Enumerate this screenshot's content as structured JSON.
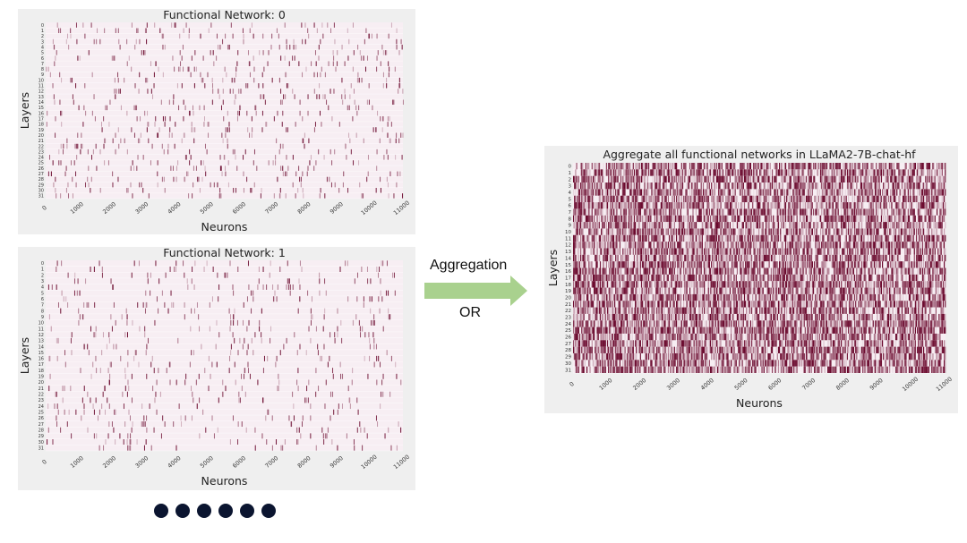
{
  "arrow": {
    "label_top": "Aggregation",
    "label_bottom": "OR",
    "color": "#a9d18e"
  },
  "dots": {
    "count": 6,
    "color": "#0b1530"
  },
  "colors": {
    "panel_bg": "#efefef",
    "cell_base": "#f7eef3",
    "cell_dark": "#6b0a2e"
  },
  "chart_data": [
    {
      "type": "heatmap",
      "title": "Functional Network: 0",
      "xlabel": "Neurons",
      "ylabel": "Layers",
      "x_ticks": [
        "0",
        "1000",
        "2000",
        "3000",
        "4000",
        "5000",
        "6000",
        "7000",
        "8000",
        "9000",
        "10000",
        "11000"
      ],
      "y_ticks": [
        "0",
        "1",
        "2",
        "3",
        "4",
        "5",
        "6",
        "7",
        "8",
        "9",
        "10",
        "11",
        "12",
        "13",
        "14",
        "15",
        "16",
        "17",
        "18",
        "19",
        "20",
        "21",
        "22",
        "23",
        "24",
        "25",
        "26",
        "27",
        "28",
        "29",
        "30",
        "31"
      ],
      "xlim": [
        0,
        11008
      ],
      "layers": 32,
      "sparse": true,
      "activation_density": 0.0022
    },
    {
      "type": "heatmap",
      "title": "Functional Network: 1",
      "xlabel": "Neurons",
      "ylabel": "Layers",
      "x_ticks": [
        "0",
        "1000",
        "2000",
        "3000",
        "4000",
        "5000",
        "6000",
        "7000",
        "8000",
        "9000",
        "10000",
        "11000"
      ],
      "y_ticks": [
        "0",
        "1",
        "2",
        "3",
        "4",
        "5",
        "6",
        "7",
        "8",
        "9",
        "10",
        "11",
        "12",
        "13",
        "14",
        "15",
        "16",
        "17",
        "18",
        "19",
        "20",
        "21",
        "22",
        "23",
        "24",
        "25",
        "26",
        "27",
        "28",
        "29",
        "30",
        "31"
      ],
      "xlim": [
        0,
        11008
      ],
      "layers": 32,
      "sparse": true,
      "activation_density": 0.0018
    },
    {
      "type": "heatmap",
      "title": "Aggregate all functional networks in LLaMA2-7B-chat-hf",
      "xlabel": "Neurons",
      "ylabel": "Layers",
      "x_ticks": [
        "0",
        "1000",
        "2000",
        "3000",
        "4000",
        "5000",
        "6000",
        "7000",
        "8000",
        "9000",
        "10000",
        "11000"
      ],
      "y_ticks": [
        "0",
        "1",
        "2",
        "3",
        "4",
        "5",
        "6",
        "7",
        "8",
        "9",
        "10",
        "11",
        "12",
        "13",
        "14",
        "15",
        "16",
        "17",
        "18",
        "19",
        "20",
        "21",
        "22",
        "23",
        "24",
        "25",
        "26",
        "27",
        "28",
        "29",
        "30",
        "31"
      ],
      "xlim": [
        0,
        11008
      ],
      "layers": 32,
      "sparse": false,
      "activation_density": 0.6
    }
  ]
}
